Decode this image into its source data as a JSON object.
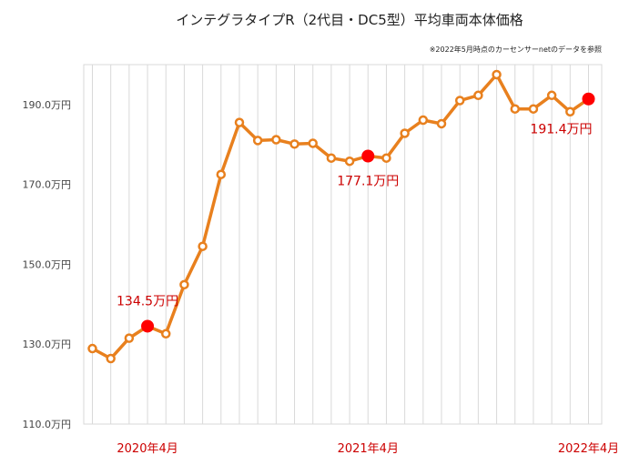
{
  "chart_data": {
    "type": "line",
    "title": "インテグラタイプR（2代目・DC5型）平均車両本体価格",
    "note": "※2022年5月時点のカーセンサーnetのデータを参照",
    "xlabel": "",
    "ylabel": "",
    "ylim": [
      110,
      200
    ],
    "yticks": [
      {
        "value": 110,
        "label": "110.0万円"
      },
      {
        "value": 130,
        "label": "130.0万円"
      },
      {
        "value": 150,
        "label": "150.0万円"
      },
      {
        "value": 170,
        "label": "170.0万円"
      },
      {
        "value": 190,
        "label": "190.0万円"
      }
    ],
    "xticks": [
      {
        "index": 3,
        "label": "2020年4月"
      },
      {
        "index": 15,
        "label": "2021年4月"
      },
      {
        "index": 27,
        "label": "2022年4月"
      }
    ],
    "grid": "vertical",
    "series": [
      {
        "values": [
          128.9,
          126.4,
          131.5,
          134.5,
          132.6,
          144.9,
          154.5,
          172.5,
          185.5,
          181.0,
          181.2,
          180.1,
          180.3,
          176.6,
          175.8,
          177.1,
          176.6,
          182.8,
          186.1,
          185.2,
          191.0,
          192.3,
          197.5,
          188.9,
          188.9,
          192.3,
          188.2,
          191.4
        ]
      }
    ],
    "highlights": [
      {
        "index": 3,
        "label": "134.5万円"
      },
      {
        "index": 15,
        "label": "177.1万円"
      },
      {
        "index": 27,
        "label": "191.4万円"
      }
    ],
    "colors": {
      "line": "#e8801e",
      "marker_fill": "#ffffff",
      "highlight": "#ff0000",
      "label": "#cc0000",
      "grid": "#d9d9d9"
    }
  }
}
